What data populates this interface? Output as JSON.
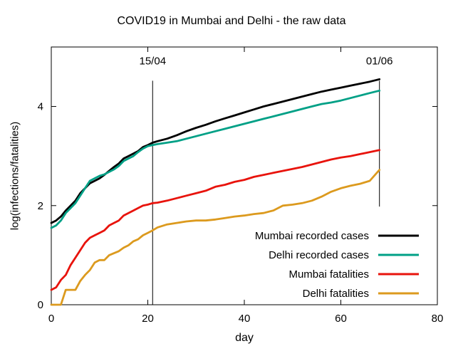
{
  "chart_data": {
    "type": "line",
    "title": "COVID19 in Mumbai and Delhi - the raw data",
    "xlabel": "day",
    "ylabel": "log(infections/fatalities)",
    "xlim": [
      0,
      80
    ],
    "ylim": [
      0,
      5.2
    ],
    "xticks": [
      0,
      20,
      40,
      60,
      80
    ],
    "yticks": [
      0,
      2,
      4
    ],
    "grid": false,
    "legend_position": "inside bottom-right",
    "x": [
      0,
      1,
      2,
      3,
      4,
      5,
      6,
      7,
      8,
      9,
      10,
      11,
      12,
      13,
      14,
      15,
      16,
      17,
      18,
      19,
      20,
      21,
      22,
      24,
      26,
      28,
      30,
      32,
      34,
      36,
      38,
      40,
      42,
      44,
      46,
      48,
      50,
      52,
      54,
      56,
      58,
      60,
      62,
      64,
      66,
      68
    ],
    "series": [
      {
        "name": "Mumbai recorded cases",
        "color": "#000000",
        "values": [
          1.65,
          1.7,
          1.78,
          1.9,
          2.0,
          2.1,
          2.25,
          2.35,
          2.45,
          2.5,
          2.55,
          2.62,
          2.7,
          2.78,
          2.85,
          2.95,
          3.0,
          3.05,
          3.1,
          3.18,
          3.22,
          3.27,
          3.3,
          3.35,
          3.42,
          3.5,
          3.57,
          3.63,
          3.7,
          3.76,
          3.82,
          3.88,
          3.94,
          4.0,
          4.05,
          4.1,
          4.15,
          4.2,
          4.25,
          4.3,
          4.34,
          4.38,
          4.42,
          4.46,
          4.5,
          4.55
        ]
      },
      {
        "name": "Delhi recorded cases",
        "color": "#00a086",
        "values": [
          1.55,
          1.6,
          1.7,
          1.85,
          1.95,
          2.05,
          2.2,
          2.35,
          2.5,
          2.55,
          2.6,
          2.63,
          2.68,
          2.73,
          2.8,
          2.9,
          2.95,
          3.0,
          3.08,
          3.15,
          3.2,
          3.22,
          3.24,
          3.27,
          3.3,
          3.35,
          3.4,
          3.45,
          3.5,
          3.55,
          3.6,
          3.65,
          3.7,
          3.75,
          3.8,
          3.85,
          3.9,
          3.95,
          4.0,
          4.05,
          4.08,
          4.12,
          4.17,
          4.22,
          4.27,
          4.32
        ]
      },
      {
        "name": "Mumbai fatalities",
        "color": "#e8130c",
        "values": [
          0.3,
          0.35,
          0.5,
          0.6,
          0.8,
          0.95,
          1.1,
          1.25,
          1.35,
          1.4,
          1.45,
          1.5,
          1.6,
          1.65,
          1.7,
          1.8,
          1.85,
          1.9,
          1.95,
          2.0,
          2.02,
          2.05,
          2.06,
          2.1,
          2.15,
          2.2,
          2.25,
          2.3,
          2.38,
          2.42,
          2.48,
          2.52,
          2.58,
          2.62,
          2.66,
          2.7,
          2.74,
          2.78,
          2.83,
          2.88,
          2.93,
          2.97,
          3.0,
          3.04,
          3.08,
          3.12
        ]
      },
      {
        "name": "Delhi fatalities",
        "color": "#dc9a1e",
        "values": [
          0,
          0,
          0,
          0.3,
          0.3,
          0.3,
          0.48,
          0.6,
          0.7,
          0.85,
          0.9,
          0.9,
          1.0,
          1.04,
          1.08,
          1.15,
          1.2,
          1.28,
          1.32,
          1.4,
          1.45,
          1.5,
          1.56,
          1.62,
          1.65,
          1.68,
          1.7,
          1.7,
          1.72,
          1.75,
          1.78,
          1.8,
          1.83,
          1.85,
          1.9,
          2.0,
          2.02,
          2.05,
          2.1,
          2.18,
          2.28,
          2.35,
          2.4,
          2.44,
          2.5,
          2.72
        ]
      }
    ],
    "annotations": [
      {
        "label": "15/04",
        "x": 21,
        "y_from": 0,
        "y_to": 4.52,
        "label_y": 4.85
      },
      {
        "label": "01/06",
        "x": 68,
        "y_from": 1.98,
        "y_to": 4.52,
        "label_y": 4.85
      }
    ]
  }
}
